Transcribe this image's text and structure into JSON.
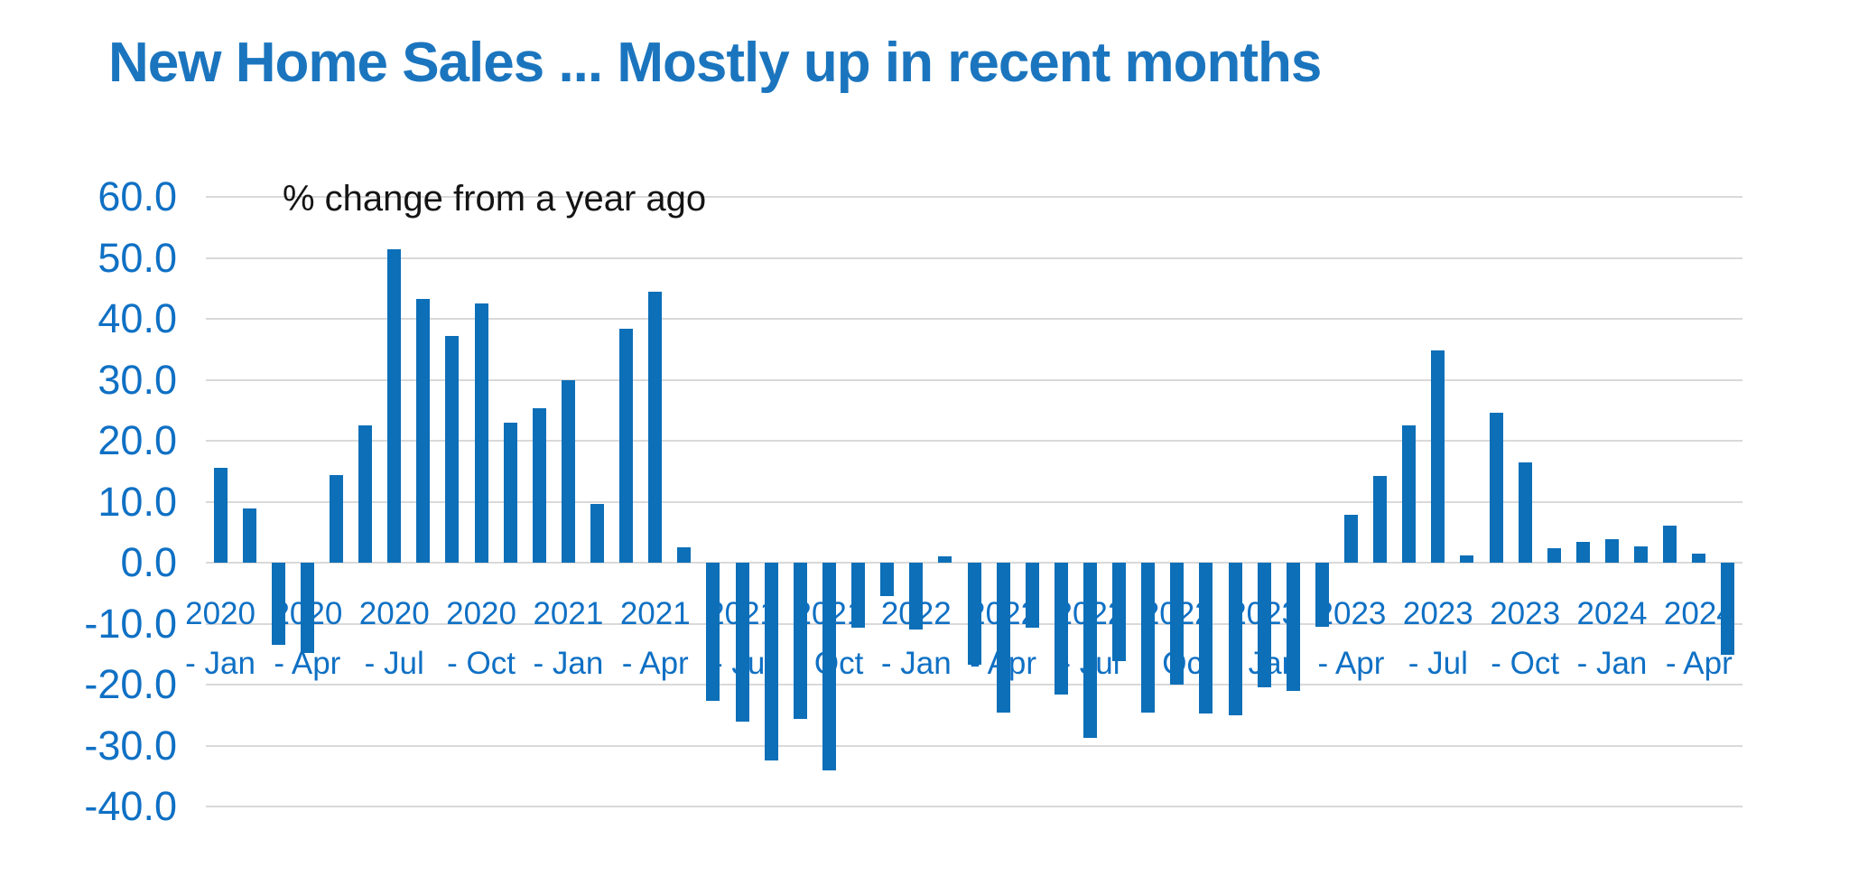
{
  "title": {
    "text": "New Home Sales ... Mostly up in recent months"
  },
  "colors": {
    "title": "#1B75BE",
    "axis_labels": "#0F70C4",
    "bar": "#0C6FB8",
    "gridline": "#D9D9D9",
    "subtitle_text": "#141414",
    "background": "#FFFFFF"
  },
  "chart_data": {
    "type": "bar",
    "title": "New Home Sales ... Mostly up in recent months",
    "subtitle": "% change from a year ago",
    "xlabel": "",
    "ylabel": "",
    "ylim": [
      -40,
      60
    ],
    "ytick_step": 10,
    "grid": true,
    "legend": false,
    "yticks": [
      "60.0",
      "50.0",
      "40.0",
      "30.0",
      "20.0",
      "10.0",
      "0.0",
      "-10.0",
      "-20.0",
      "-30.0",
      "-40.0"
    ],
    "ytick_values": [
      60,
      50,
      40,
      30,
      20,
      10,
      0,
      -10,
      -20,
      -30,
      -40
    ],
    "categories": [
      "2020-Jan",
      "2020-Feb",
      "2020-Mar",
      "2020-Apr",
      "2020-May",
      "2020-Jun",
      "2020-Jul",
      "2020-Aug",
      "2020-Sep",
      "2020-Oct",
      "2020-Nov",
      "2020-Dec",
      "2021-Jan",
      "2021-Feb",
      "2021-Mar",
      "2021-Apr",
      "2021-May",
      "2021-Jun",
      "2021-Jul",
      "2021-Aug",
      "2021-Sep",
      "2021-Oct",
      "2021-Nov",
      "2021-Dec",
      "2022-Jan",
      "2022-Feb",
      "2022-Mar",
      "2022-Apr",
      "2022-May",
      "2022-Jun",
      "2022-Jul",
      "2022-Aug",
      "2022-Sep",
      "2022-Oct",
      "2022-Nov",
      "2022-Dec",
      "2023-Jan",
      "2023-Feb",
      "2023-Mar",
      "2023-Apr",
      "2023-May",
      "2023-Jun",
      "2023-Jul",
      "2023-Aug",
      "2023-Sep",
      "2023-Oct",
      "2023-Nov",
      "2023-Dec",
      "2024-Jan",
      "2024-Feb",
      "2024-Mar",
      "2024-Apr",
      "2024-May"
    ],
    "values": [
      15.6,
      8.9,
      -13.5,
      -14.8,
      14.3,
      22.5,
      51.4,
      43.3,
      37.2,
      42.5,
      23.0,
      25.3,
      30.0,
      9.6,
      38.4,
      44.4,
      2.5,
      -22.6,
      -26.0,
      -32.5,
      -25.6,
      -34.0,
      -10.6,
      -5.5,
      -11.0,
      1.0,
      -16.8,
      -24.6,
      -10.7,
      -21.7,
      -28.7,
      -16.1,
      -24.6,
      -20.0,
      -24.7,
      -25.0,
      -20.5,
      -21.0,
      -10.5,
      7.9,
      14.2,
      22.5,
      34.8,
      1.2,
      24.6,
      16.5,
      2.3,
      3.4,
      3.8,
      2.6,
      6.1,
      1.5,
      -15.1
    ],
    "x_tick_labels": [
      {
        "line1": "2020",
        "line2": "- Jan"
      },
      {
        "line1": "2020",
        "line2": "- Apr"
      },
      {
        "line1": "2020",
        "line2": "- Jul"
      },
      {
        "line1": "2020",
        "line2": "- Oct"
      },
      {
        "line1": "2021",
        "line2": "- Jan"
      },
      {
        "line1": "2021",
        "line2": "- Apr"
      },
      {
        "line1": "2021",
        "line2": "- Jul"
      },
      {
        "line1": "2021",
        "line2": "- Oct"
      },
      {
        "line1": "2022",
        "line2": "- Jan"
      },
      {
        "line1": "2022",
        "line2": "- Apr"
      },
      {
        "line1": "2022",
        "line2": "- Jul"
      },
      {
        "line1": "2022",
        "line2": "- Oct"
      },
      {
        "line1": "2023",
        "line2": "- Jan"
      },
      {
        "line1": "2023",
        "line2": "- Apr"
      },
      {
        "line1": "2023",
        "line2": "- Jul"
      },
      {
        "line1": "2023",
        "line2": "- Oct"
      },
      {
        "line1": "2024",
        "line2": "- Jan"
      },
      {
        "line1": "2024",
        "line2": "- Apr"
      }
    ],
    "x_tick_every_n_months": 3,
    "legend_position": "none"
  }
}
